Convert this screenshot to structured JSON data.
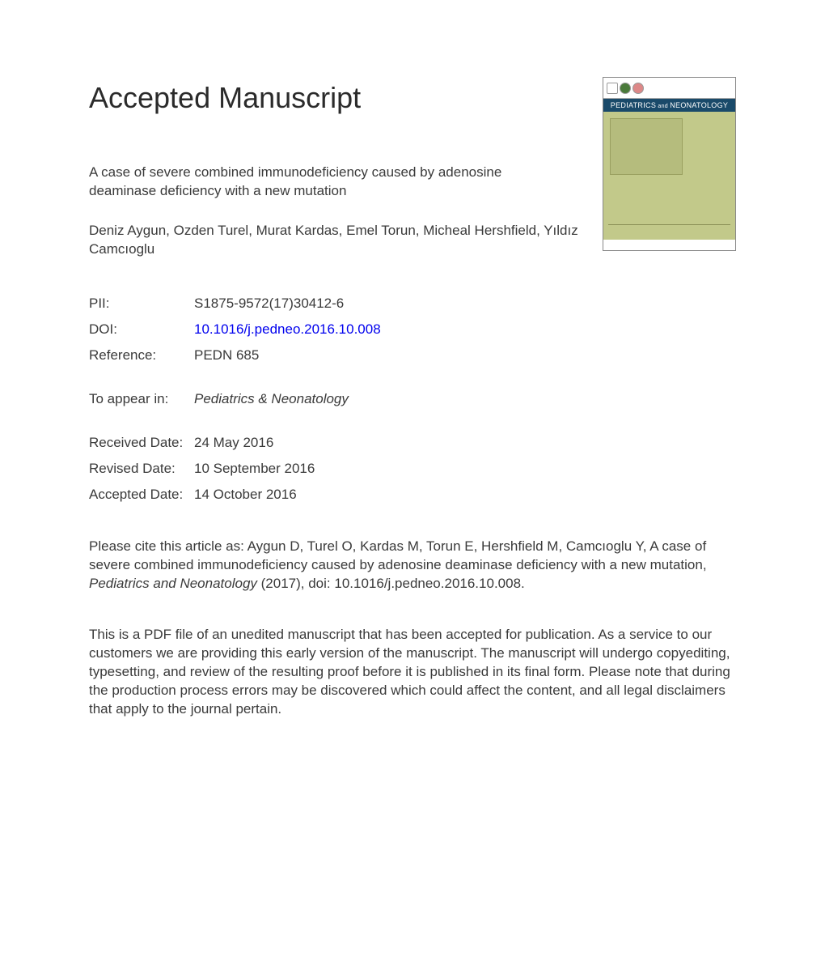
{
  "heading": "Accepted Manuscript",
  "title": "A case of severe combined immunodeficiency caused by adenosine deaminase deficiency with a new mutation",
  "authors": "Deniz Aygun, Ozden Turel, Murat Kardas, Emel Torun, Micheal Hershfield, Yıldız Camcıoglu",
  "meta": {
    "pii_label": "PII:",
    "pii_value": "S1875-9572(17)30412-6",
    "doi_label": "DOI:",
    "doi_value": "10.1016/j.pedneo.2016.10.008",
    "ref_label": "Reference:",
    "ref_value": "PEDN 685",
    "appear_label": "To appear in:",
    "appear_value": "Pediatrics & Neonatology",
    "received_label": "Received Date:",
    "received_value": "24 May 2016",
    "revised_label": "Revised Date:",
    "revised_value": "10 September 2016",
    "accepted_label": "Accepted Date:",
    "accepted_value": "14 October 2016"
  },
  "citation_pre": "Please cite this article as: Aygun D, Turel O, Kardas M, Torun E, Hershfield M, Camcıoglu Y, A case of severe combined immunodeficiency caused by adenosine deaminase deficiency with a new mutation, ",
  "citation_journal": "Pediatrics and Neonatology",
  "citation_post": " (2017), doi: 10.1016/j.pedneo.2016.10.008.",
  "disclaimer": "This is a PDF file of an unedited manuscript that has been accepted for publication. As a service to our customers we are providing this early version of the manuscript. The manuscript will undergo copyediting, typesetting, and review of the resulting proof before it is published in its final form. Please note that during the production process errors may be discovered which could affect the content, and all legal disclaimers that apply to the journal pertain.",
  "cover": {
    "journal_title_1": "PEDIATRICS",
    "journal_title_and": " and ",
    "journal_title_2": "NEONATOLOGY",
    "background_color": "#c2c98a",
    "band_color": "#1a4a6a"
  }
}
